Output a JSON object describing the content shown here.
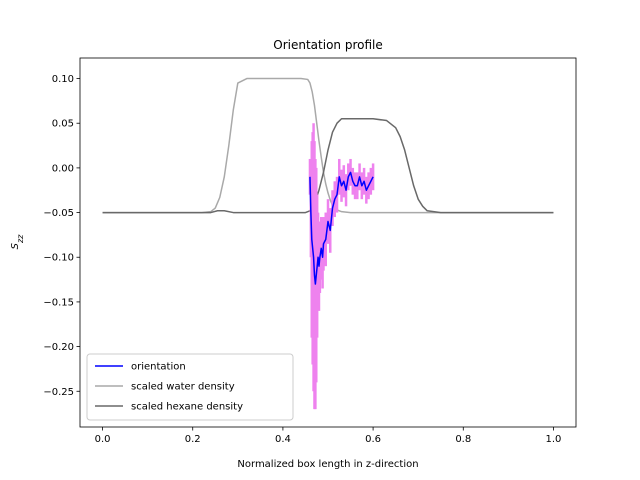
{
  "chart_data": {
    "type": "line",
    "title": "Orientation profile",
    "xlabel": "Normalized box length in z-direction",
    "ylabel": "S_zz",
    "xlim": [
      -0.05,
      1.05
    ],
    "ylim": [
      -0.29,
      0.123
    ],
    "xticks": [
      0.0,
      0.2,
      0.4,
      0.6,
      0.8,
      1.0
    ],
    "xtick_labels": [
      "0.0",
      "0.2",
      "0.4",
      "0.6",
      "0.8",
      "1.0"
    ],
    "yticks": [
      -0.25,
      -0.2,
      -0.15,
      -0.1,
      -0.05,
      0.0,
      0.05,
      0.1
    ],
    "ytick_labels": [
      "−0.25",
      "−0.20",
      "−0.15",
      "−0.10",
      "−0.05",
      "0.00",
      "0.05",
      "0.10"
    ],
    "legend_position": "lower-left",
    "grid": false,
    "series": [
      {
        "name": "scaled water density",
        "color": "#a9a9a9",
        "x": [
          0.0,
          0.2,
          0.22,
          0.24,
          0.25,
          0.26,
          0.27,
          0.28,
          0.29,
          0.3,
          0.32,
          0.36,
          0.4,
          0.44,
          0.455,
          0.46,
          0.465,
          0.47,
          0.475,
          0.48,
          0.485,
          0.49,
          0.495,
          0.5,
          0.505,
          0.51,
          0.52,
          0.53,
          0.55,
          1.0
        ],
        "y": [
          -0.05,
          -0.05,
          -0.05,
          -0.049,
          -0.045,
          -0.033,
          -0.01,
          0.025,
          0.065,
          0.095,
          0.1,
          0.1,
          0.1,
          0.1,
          0.099,
          0.095,
          0.085,
          0.07,
          0.05,
          0.03,
          0.012,
          -0.005,
          -0.018,
          -0.028,
          -0.036,
          -0.042,
          -0.047,
          -0.049,
          -0.05,
          -0.05
        ]
      },
      {
        "name": "scaled hexane density",
        "color": "#696969",
        "x": [
          0.0,
          0.2,
          0.24,
          0.255,
          0.27,
          0.29,
          0.3,
          0.35,
          0.4,
          0.45,
          0.46,
          0.47,
          0.48,
          0.49,
          0.5,
          0.51,
          0.52,
          0.53,
          0.55,
          0.6,
          0.63,
          0.65,
          0.66,
          0.67,
          0.68,
          0.69,
          0.7,
          0.71,
          0.72,
          0.75,
          1.0
        ],
        "y": [
          -0.05,
          -0.05,
          -0.05,
          -0.048,
          -0.048,
          -0.05,
          -0.05,
          -0.05,
          -0.05,
          -0.05,
          -0.048,
          -0.04,
          -0.025,
          -0.005,
          0.02,
          0.04,
          0.05,
          0.055,
          0.055,
          0.055,
          0.053,
          0.045,
          0.035,
          0.02,
          0.0,
          -0.02,
          -0.035,
          -0.043,
          -0.048,
          -0.05,
          -0.05
        ]
      },
      {
        "name": "orientation",
        "color": "#0000ff",
        "error_color": "#ee82ee",
        "x": [
          0.46,
          0.462,
          0.464,
          0.466,
          0.468,
          0.47,
          0.472,
          0.474,
          0.476,
          0.478,
          0.48,
          0.482,
          0.485,
          0.488,
          0.49,
          0.495,
          0.5,
          0.505,
          0.51,
          0.515,
          0.52,
          0.525,
          0.53,
          0.535,
          0.54,
          0.545,
          0.55,
          0.555,
          0.56,
          0.565,
          0.57,
          0.575,
          0.58,
          0.585,
          0.59,
          0.595,
          0.6
        ],
        "y": [
          -0.01,
          -0.05,
          -0.08,
          -0.09,
          -0.1,
          -0.12,
          -0.13,
          -0.12,
          -0.11,
          -0.1,
          -0.11,
          -0.1,
          -0.09,
          -0.1,
          -0.085,
          -0.08,
          -0.06,
          -0.07,
          -0.045,
          -0.035,
          -0.03,
          -0.01,
          -0.02,
          -0.015,
          -0.025,
          -0.01,
          -0.005,
          -0.015,
          -0.02,
          -0.02,
          -0.01,
          -0.02,
          -0.015,
          -0.025,
          -0.02,
          -0.015,
          -0.01
        ],
        "err": [
          0.02,
          0.05,
          0.11,
          0.13,
          0.15,
          0.15,
          0.14,
          0.12,
          0.08,
          0.05,
          0.05,
          0.04,
          0.035,
          0.035,
          0.03,
          0.03,
          0.025,
          0.025,
          0.02,
          0.02,
          0.02,
          0.02,
          0.018,
          0.018,
          0.018,
          0.015,
          0.015,
          0.015,
          0.015,
          0.015,
          0.015,
          0.015,
          0.015,
          0.015,
          0.015,
          0.015,
          0.015
        ]
      }
    ],
    "legend_order": [
      "orientation",
      "scaled water density",
      "scaled hexane density"
    ]
  }
}
